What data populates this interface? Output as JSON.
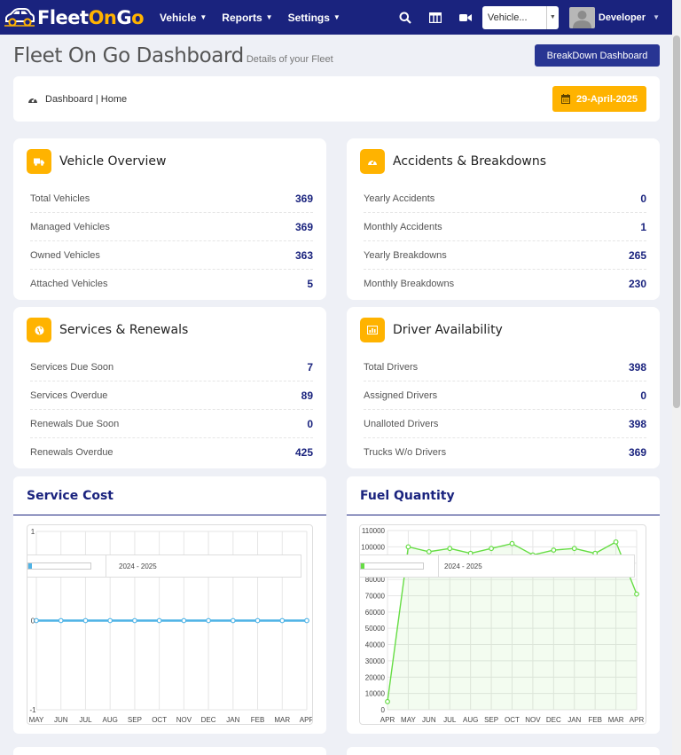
{
  "navbar": {
    "logo": {
      "part1": "Fleet",
      "part2": "On",
      "part3": "G",
      "part4": "o"
    },
    "menu": [
      {
        "label": "Vehicle"
      },
      {
        "label": "Reports"
      },
      {
        "label": "Settings"
      }
    ],
    "vehicle_select": {
      "value": "Vehicle..."
    },
    "user": {
      "name": "Developer"
    }
  },
  "header": {
    "title": "Fleet On Go Dashboard",
    "subtitle": "Details of your Fleet",
    "breakdown_button": "BreakDown Dashboard"
  },
  "breadcrumb": {
    "text": "Dashboard | Home",
    "date": "29-April-2025"
  },
  "cards": {
    "vehicle_overview": {
      "title": "Vehicle Overview",
      "rows": [
        {
          "label": "Total Vehicles",
          "value": "369"
        },
        {
          "label": "Managed Vehicles",
          "value": "369"
        },
        {
          "label": "Owned Vehicles",
          "value": "363"
        },
        {
          "label": "Attached Vehicles",
          "value": "5"
        }
      ]
    },
    "accidents": {
      "title": "Accidents & Breakdowns",
      "rows": [
        {
          "label": "Yearly Accidents",
          "value": "0"
        },
        {
          "label": "Monthly Accidents",
          "value": "1"
        },
        {
          "label": "Yearly Breakdowns",
          "value": "265"
        },
        {
          "label": "Monthly Breakdowns",
          "value": "230"
        }
      ]
    },
    "services": {
      "title": "Services & Renewals",
      "rows": [
        {
          "label": "Services Due Soon",
          "value": "7"
        },
        {
          "label": "Services Overdue",
          "value": "89"
        },
        {
          "label": "Renewals Due Soon",
          "value": "0"
        },
        {
          "label": "Renewals Overdue",
          "value": "425"
        }
      ]
    },
    "drivers": {
      "title": "Driver Availability",
      "rows": [
        {
          "label": "Total Drivers",
          "value": "398"
        },
        {
          "label": "Assigned Drivers",
          "value": "0"
        },
        {
          "label": "Unalloted Drivers",
          "value": "398"
        },
        {
          "label": "Trucks W/o Drivers",
          "value": "369"
        }
      ]
    }
  },
  "colors": {
    "navbar": "#1a237e",
    "accent": "#ffb300",
    "service_line": "#4fb3e6",
    "fuel_line": "#66dd44"
  },
  "chart_data": [
    {
      "type": "line",
      "title": "Service Cost",
      "legend": "2024 - 2025",
      "categories": [
        "MAY",
        "JUN",
        "JUL",
        "AUG",
        "SEP",
        "OCT",
        "NOV",
        "DEC",
        "JAN",
        "FEB",
        "MAR",
        "APR"
      ],
      "series": [
        {
          "name": "2024 - 2025",
          "values": [
            0,
            0,
            0,
            0,
            0,
            0,
            0,
            0,
            0,
            0,
            0,
            0
          ]
        }
      ],
      "ylim": [
        -1,
        1
      ],
      "yticks": [
        "1",
        "0",
        "-1"
      ],
      "grid": true
    },
    {
      "type": "area",
      "title": "Fuel Quantity",
      "legend": "2024 - 2025",
      "categories": [
        "APR",
        "MAY",
        "JUN",
        "JUL",
        "AUG",
        "SEP",
        "OCT",
        "NOV",
        "DEC",
        "JAN",
        "FEB",
        "MAR",
        "APR"
      ],
      "series": [
        {
          "name": "2024 - 2025",
          "values": [
            5000,
            100000,
            97000,
            99000,
            96000,
            99000,
            102000,
            95000,
            98000,
            99000,
            96000,
            103000,
            71000
          ]
        }
      ],
      "ylim": [
        0,
        110000
      ],
      "yticks": [
        "110000",
        "100000",
        "90000",
        "80000",
        "70000",
        "60000",
        "50000",
        "40000",
        "30000",
        "20000",
        "10000",
        "0"
      ],
      "grid": true
    }
  ]
}
